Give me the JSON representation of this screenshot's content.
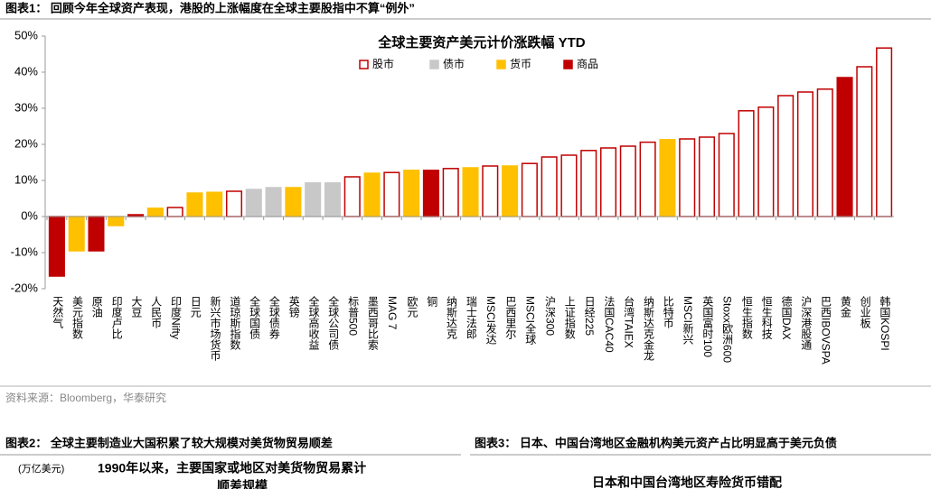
{
  "header": {
    "title": "图表1：  回顾今年全球资产表现，港股的上涨幅度在全球主要股指中不算“例外”"
  },
  "chart_data": {
    "type": "bar",
    "title": "全球主要资产美元计价涨跌幅 YTD",
    "categories": [
      "天然气",
      "美元指数",
      "原油",
      "印度卢比",
      "大豆",
      "人民币",
      "印度Nifty",
      "日元",
      "新兴市场货币",
      "道琼斯指数",
      "全球国债",
      "全球债券",
      "英镑",
      "全球高收益",
      "全球公司债",
      "标普500",
      "墨西哥比索",
      "MAG 7",
      "欧元",
      "铜",
      "纳斯达克",
      "瑞士法郎",
      "MSCI发达",
      "巴西里尔",
      "MSCI全球",
      "沪深300",
      "上证指数",
      "日经225",
      "法国CAC40",
      "台湾TAIEX",
      "纳斯达克金龙",
      "比特币",
      "MSCI新兴",
      "英国富时100",
      "Stoxx欧洲600",
      "恒生指数",
      "恒生科技",
      "德国DAX",
      "沪深港股通",
      "巴西IBOVSPA",
      "黄金",
      "创业板",
      "韩国KOSPI"
    ],
    "series": [
      {
        "name": "股市",
        "color": "#c00000",
        "fill": "#ffffff",
        "values": [
          null,
          null,
          null,
          null,
          null,
          null,
          2.5,
          null,
          null,
          7.0,
          null,
          null,
          null,
          null,
          null,
          11.0,
          null,
          12.2,
          null,
          null,
          13.3,
          null,
          14.0,
          null,
          14.7,
          16.5,
          17.0,
          18.3,
          19.0,
          19.5,
          20.6,
          null,
          21.5,
          22.0,
          23.0,
          29.3,
          30.3,
          33.5,
          34.5,
          35.3,
          null,
          41.5,
          46.7
        ]
      },
      {
        "name": "债市",
        "color": "#c8c8c8",
        "values": [
          null,
          null,
          null,
          null,
          null,
          null,
          null,
          null,
          null,
          null,
          7.5,
          8.0,
          null,
          9.3,
          9.3,
          null,
          null,
          null,
          null,
          null,
          null,
          null,
          null,
          null,
          null,
          null,
          null,
          null,
          null,
          null,
          null,
          null,
          null,
          null,
          null,
          null,
          null,
          null,
          null,
          null,
          null,
          null,
          null
        ]
      },
      {
        "name": "货币",
        "color": "#ffc000",
        "values": [
          null,
          -9.5,
          null,
          -2.5,
          null,
          2.3,
          null,
          6.5,
          6.7,
          null,
          null,
          null,
          8.0,
          null,
          null,
          null,
          12.0,
          null,
          12.8,
          null,
          null,
          13.5,
          null,
          14.0,
          null,
          null,
          null,
          null,
          null,
          null,
          null,
          21.3,
          null,
          null,
          null,
          null,
          null,
          null,
          null,
          null,
          null,
          null,
          null
        ]
      },
      {
        "name": "商品",
        "color": "#c00000",
        "values": [
          -16.5,
          null,
          -9.5,
          null,
          0.5,
          null,
          null,
          null,
          null,
          null,
          null,
          null,
          null,
          null,
          null,
          null,
          null,
          null,
          null,
          12.8,
          null,
          null,
          null,
          null,
          null,
          null,
          null,
          null,
          null,
          null,
          null,
          null,
          null,
          null,
          null,
          null,
          null,
          null,
          null,
          null,
          38.5,
          null,
          null
        ]
      }
    ],
    "ylim": [
      -20,
      50
    ],
    "yticks": [
      {
        "value": -20,
        "label": "-20%"
      },
      {
        "value": -10,
        "label": "-10%"
      },
      {
        "value": 0,
        "label": "0%"
      },
      {
        "value": 10,
        "label": "10%"
      },
      {
        "value": 20,
        "label": "20%"
      },
      {
        "value": 30,
        "label": "30%"
      },
      {
        "value": 40,
        "label": "40%"
      },
      {
        "value": 50,
        "label": "50%"
      }
    ],
    "grid": false
  },
  "source": "资料来源：Bloomberg，华泰研究",
  "figure2": {
    "title": "图表2：  全球主要制造业大国积累了较大规模对美货物贸易顺差",
    "unit": "(万亿美元)",
    "chart_title": "1990年以来，主要国家或地区对美货物贸易累计",
    "chart_title_2": "顺差规模"
  },
  "figure3": {
    "title": "图表3：  日本、中国台湾地区金融机构美元资产占比明显高于美元负债",
    "chart_title": "日本和中国台湾地区寿险货币错配"
  }
}
